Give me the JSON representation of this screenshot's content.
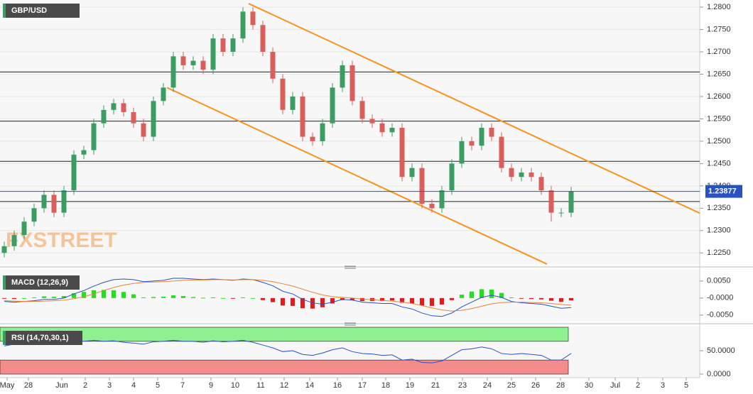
{
  "chart_data": [
    {
      "type": "candlestick",
      "title": "GBP/USD",
      "watermark": "FXSTREET",
      "open": [
        1.225,
        1.2265,
        1.229,
        1.232,
        1.235,
        1.238,
        1.234,
        1.239,
        1.247,
        1.248,
        1.254,
        1.257,
        1.2585,
        1.2565,
        1.254,
        1.251,
        1.259,
        1.262,
        1.269,
        1.267,
        1.268,
        1.266,
        1.273,
        1.27,
        1.273,
        1.279,
        1.276,
        1.27,
        1.264,
        1.257,
        1.26,
        1.251,
        1.25,
        1.254,
        1.262,
        1.267,
        1.259,
        1.255,
        1.254,
        1.252,
        1.253,
        1.242,
        1.244,
        1.236,
        1.235,
        1.239,
        1.245,
        1.25,
        1.249,
        1.253,
        1.251,
        1.244,
        1.242,
        1.243,
        1.242,
        1.239,
        1.234,
        1.234
      ],
      "high": [
        1.2275,
        1.23,
        1.233,
        1.236,
        1.239,
        1.239,
        1.24,
        1.248,
        1.249,
        1.255,
        1.258,
        1.2595,
        1.2595,
        1.2575,
        1.255,
        1.26,
        1.263,
        1.27,
        1.27,
        1.269,
        1.269,
        1.274,
        1.274,
        1.274,
        1.28,
        1.28,
        1.277,
        1.271,
        1.265,
        1.261,
        1.261,
        1.252,
        1.255,
        1.263,
        1.268,
        1.268,
        1.26,
        1.256,
        1.255,
        1.254,
        1.254,
        1.245,
        1.245,
        1.237,
        1.24,
        1.246,
        1.251,
        1.251,
        1.254,
        1.254,
        1.252,
        1.245,
        1.244,
        1.244,
        1.243,
        1.24,
        1.235,
        1.2398
      ],
      "low": [
        1.224,
        1.2255,
        1.228,
        1.231,
        1.234,
        1.233,
        1.233,
        1.238,
        1.246,
        1.247,
        1.253,
        1.256,
        1.2555,
        1.253,
        1.25,
        1.25,
        1.258,
        1.261,
        1.266,
        1.266,
        1.265,
        1.265,
        1.269,
        1.269,
        1.272,
        1.275,
        1.269,
        1.263,
        1.256,
        1.256,
        1.25,
        1.249,
        1.249,
        1.253,
        1.261,
        1.258,
        1.254,
        1.253,
        1.251,
        1.251,
        1.241,
        1.241,
        1.235,
        1.234,
        1.234,
        1.238,
        1.244,
        1.248,
        1.248,
        1.25,
        1.243,
        1.241,
        1.241,
        1.241,
        1.238,
        1.232,
        1.233,
        1.233
      ],
      "close": [
        1.2265,
        1.229,
        1.232,
        1.235,
        1.238,
        1.234,
        1.239,
        1.247,
        1.248,
        1.254,
        1.257,
        1.2585,
        1.2565,
        1.254,
        1.251,
        1.259,
        1.262,
        1.269,
        1.267,
        1.268,
        1.266,
        1.273,
        1.27,
        1.273,
        1.279,
        1.276,
        1.27,
        1.264,
        1.257,
        1.26,
        1.251,
        1.25,
        1.254,
        1.262,
        1.267,
        1.259,
        1.255,
        1.254,
        1.252,
        1.253,
        1.242,
        1.244,
        1.236,
        1.235,
        1.239,
        1.245,
        1.25,
        1.249,
        1.253,
        1.251,
        1.244,
        1.242,
        1.243,
        1.242,
        1.239,
        1.234,
        1.234,
        1.2388
      ],
      "up_color": "#3c9d62",
      "down_color": "#d9605a",
      "ylim": [
        1.2225,
        1.2816
      ],
      "yticks": [
        {
          "value": 1.28,
          "label": "1.2800"
        },
        {
          "value": 1.275,
          "label": "1.2750"
        },
        {
          "value": 1.27,
          "label": "1.2700"
        },
        {
          "value": 1.265,
          "label": "1.2650"
        },
        {
          "value": 1.26,
          "label": "1.2600"
        },
        {
          "value": 1.255,
          "label": "1.2550"
        },
        {
          "value": 1.25,
          "label": "1.2500"
        },
        {
          "value": 1.245,
          "label": "1.2450"
        },
        {
          "value": 1.24,
          "label": "1.2400"
        },
        {
          "value": 1.235,
          "label": "1.2350"
        },
        {
          "value": 1.23,
          "label": "1.2300"
        },
        {
          "value": 1.225,
          "label": "1.2250"
        }
      ],
      "grid": true,
      "hlines": [
        1.2655,
        1.2545,
        1.2455,
        1.2365
      ],
      "last_price": 1.23877,
      "last_price_color": "#2a52be",
      "trendlines": [
        {
          "color": "#f7931a",
          "y": [
            1.2808,
            1.2339
          ]
        },
        {
          "color": "#f7931a",
          "y": [
            1.262,
            1.2225
          ]
        }
      ]
    },
    {
      "type": "macd",
      "title": "MACD (12,26,9)",
      "macd": [
        -0.001,
        -0.0012,
        -0.001,
        -0.0008,
        -0.0004,
        -0.0004,
        0.0,
        0.0012,
        0.0022,
        0.0035,
        0.0046,
        0.0054,
        0.0056,
        0.0054,
        0.0048,
        0.005,
        0.0052,
        0.0058,
        0.0058,
        0.0056,
        0.0054,
        0.0056,
        0.0054,
        0.0052,
        0.0056,
        0.0054,
        0.0046,
        0.0036,
        0.002,
        0.0012,
        -0.0004,
        -0.0014,
        -0.0018,
        -0.0012,
        -0.0004,
        -0.0006,
        -0.0012,
        -0.0014,
        -0.0016,
        -0.0016,
        -0.0026,
        -0.0032,
        -0.0044,
        -0.0052,
        -0.0054,
        -0.0044,
        -0.0026,
        -0.0012,
        0.0002,
        0.0008,
        0.0002,
        -0.001,
        -0.0014,
        -0.0016,
        -0.0018,
        -0.0024,
        -0.003,
        -0.0028
      ],
      "signal": [
        -0.0008,
        -0.0009,
        -0.001,
        -0.001,
        -0.0009,
        -0.0008,
        -0.0006,
        -0.0002,
        0.0004,
        0.0012,
        0.0022,
        0.0031,
        0.0038,
        0.0043,
        0.0046,
        0.0047,
        0.0048,
        0.005,
        0.0052,
        0.0053,
        0.0053,
        0.0054,
        0.0054,
        0.0053,
        0.0054,
        0.0054,
        0.0052,
        0.0048,
        0.0042,
        0.0035,
        0.0026,
        0.0017,
        0.0009,
        0.0004,
        0.0002,
        0.0,
        -0.0003,
        -0.0005,
        -0.0007,
        -0.0009,
        -0.0012,
        -0.0016,
        -0.0022,
        -0.0029,
        -0.0035,
        -0.0038,
        -0.0036,
        -0.0031,
        -0.0024,
        -0.0017,
        -0.0013,
        -0.0012,
        -0.0012,
        -0.0013,
        -0.0014,
        -0.0016,
        -0.0019,
        -0.0021
      ],
      "histogram": [
        -0.0002,
        -0.0003,
        0.0,
        0.0002,
        0.0005,
        0.0004,
        0.0006,
        0.0014,
        0.0018,
        0.0023,
        0.0024,
        0.0023,
        0.0018,
        0.0011,
        0.0002,
        0.0003,
        0.0004,
        0.0008,
        0.0006,
        0.0003,
        0.0001,
        0.0002,
        0.0,
        -0.0001,
        0.0002,
        0.0,
        -0.0006,
        -0.0012,
        -0.0022,
        -0.0023,
        -0.003,
        -0.0031,
        -0.0027,
        -0.0016,
        -0.0006,
        -0.0006,
        -0.0009,
        -0.0009,
        -0.0009,
        -0.0007,
        -0.0014,
        -0.0016,
        -0.0022,
        -0.0023,
        -0.0019,
        -0.0006,
        0.001,
        0.0019,
        0.0026,
        0.0025,
        0.0015,
        0.0002,
        -0.0002,
        -0.0003,
        -0.0004,
        -0.0008,
        -0.0011,
        -0.0007
      ],
      "macd_color": "#2a52be",
      "signal_color": "#e8823a",
      "up_color": "#19e619",
      "down_color": "#e61919",
      "ylim": [
        -0.0067,
        0.0083
      ],
      "yticks": [
        {
          "value": 0.005,
          "label": "0.0050"
        },
        {
          "value": 0,
          "label": "-0.0000"
        },
        {
          "value": -0.005,
          "label": "-0.0050"
        }
      ]
    },
    {
      "type": "rsi",
      "title": "RSI (14,70,30,1)",
      "values": [
        60,
        64,
        66,
        68,
        70,
        64,
        68,
        72,
        70,
        72,
        70,
        71,
        68,
        66,
        64,
        69,
        70,
        72,
        70,
        70,
        68,
        71,
        69,
        70,
        72,
        68,
        62,
        56,
        48,
        50,
        42,
        40,
        45,
        52,
        56,
        48,
        44,
        43,
        40,
        41,
        30,
        32,
        25,
        24,
        28,
        40,
        52,
        54,
        58,
        54,
        44,
        42,
        44,
        42,
        40,
        30,
        30,
        44
      ],
      "color": "#2a52be",
      "bands": [
        {
          "from": 70,
          "to": 100,
          "color": "#8ef08e"
        },
        {
          "from": 0,
          "to": 30,
          "color": "#f58c8c"
        }
      ],
      "ylim": [
        -7.6,
        101.5
      ],
      "yticks": [
        {
          "value": 50,
          "label": "50.0000"
        },
        {
          "value": 0,
          "label": "0.0000"
        }
      ]
    }
  ],
  "x_axis_labels": [
    "May",
    "28",
    "Jun",
    "2",
    "3",
    "4",
    "5",
    "7",
    "9",
    "10",
    "11",
    "12",
    "14",
    "16",
    "17",
    "18",
    "19",
    "21",
    "23",
    "24",
    "25",
    "26",
    "28",
    "30",
    "Jul",
    "2",
    "3",
    "5"
  ]
}
